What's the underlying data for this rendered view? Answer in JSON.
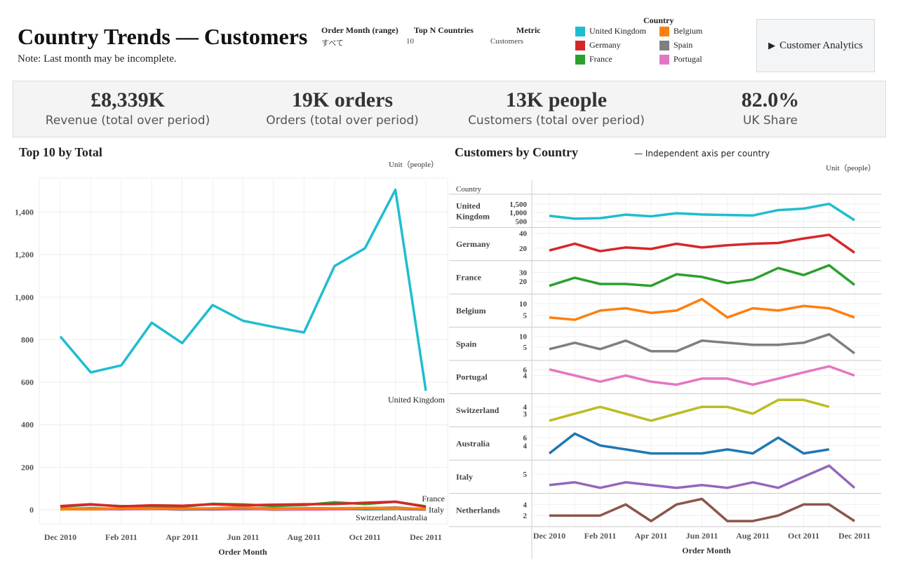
{
  "header": {
    "title": "Country Trends — Customers",
    "note": "Note: Last month may be incomplete.",
    "filters": [
      {
        "label": "Order Month (range)",
        "value": "すべて"
      },
      {
        "label": "Top N Countries",
        "value": "10"
      },
      {
        "label": "Metric",
        "value": "Customers"
      }
    ],
    "legend_title": "Country",
    "legend": [
      {
        "name": "United Kingdom",
        "color": "#1fbdd0"
      },
      {
        "name": "Belgium",
        "color": "#ff7f0e"
      },
      {
        "name": "Germany",
        "color": "#d62728"
      },
      {
        "name": "Spain",
        "color": "#7f7f7f"
      },
      {
        "name": "France",
        "color": "#2ca02c"
      },
      {
        "name": "Portugal",
        "color": "#e377c2"
      }
    ],
    "button_label": "Customer Analytics"
  },
  "kpis": [
    {
      "value": "£8,339K",
      "label": "Revenue (total over period)"
    },
    {
      "value": "19K orders",
      "label": "Orders (total over period)"
    },
    {
      "value": "13K people",
      "label": "Customers (total over period)"
    },
    {
      "value": "82.0%",
      "label": "UK Share"
    }
  ],
  "chart_data": [
    {
      "type": "line",
      "title": "Top 10 by Total",
      "unit": "Unit（people）",
      "xlabel": "Order Month",
      "ylabel": "",
      "ylim": [
        0,
        1560
      ],
      "yticks": [
        0,
        200,
        400,
        600,
        800,
        1000,
        1200,
        1400
      ],
      "ytick_labels": [
        "0",
        "200",
        "400",
        "600",
        "800",
        "1,000",
        "1,200",
        "1,400"
      ],
      "x": [
        "Dec 2010",
        "Jan 2011",
        "Feb 2011",
        "Mar 2011",
        "Apr 2011",
        "May 2011",
        "Jun 2011",
        "Jul 2011",
        "Aug 2011",
        "Sep 2011",
        "Oct 2011",
        "Nov 2011",
        "Dec 2011"
      ],
      "xtick_labels": [
        "Dec 2010",
        "Feb 2011",
        "Apr 2011",
        "Jun 2011",
        "Aug 2011",
        "Oct 2011",
        "Dec 2011"
      ],
      "series": [
        {
          "name": "United Kingdom",
          "color": "#1fbdd0",
          "values": [
            815,
            646,
            679,
            880,
            784,
            963,
            889,
            860,
            834,
            1146,
            1230,
            1505,
            560
          ]
        },
        {
          "name": "Germany",
          "color": "#d62728",
          "values": [
            17,
            26,
            16,
            21,
            19,
            26,
            21,
            24,
            26,
            27,
            33,
            38,
            14
          ]
        },
        {
          "name": "France",
          "color": "#2ca02c",
          "values": [
            15,
            24,
            17,
            17,
            15,
            28,
            25,
            18,
            22,
            35,
            27,
            38,
            16
          ]
        },
        {
          "name": "Belgium",
          "color": "#ff7f0e",
          "values": [
            4,
            3,
            7,
            8,
            6,
            7,
            12,
            4,
            8,
            7,
            9,
            8,
            4
          ]
        },
        {
          "name": "Spain",
          "color": "#7f7f7f",
          "values": [
            4,
            7,
            4,
            8,
            3,
            3,
            8,
            7,
            6,
            6,
            7,
            11,
            2
          ]
        },
        {
          "name": "Portugal",
          "color": "#e377c2",
          "values": [
            6,
            4,
            2,
            4,
            2,
            1,
            3,
            3,
            1,
            3,
            5,
            7,
            4
          ]
        },
        {
          "name": "Switzerland",
          "color": "#bcbd22",
          "values": [
            2,
            3,
            4,
            3,
            2,
            3,
            4,
            4,
            3,
            5,
            5,
            4,
            null
          ]
        },
        {
          "name": "Australia",
          "color": "#1f77b4",
          "values": [
            2,
            7,
            4,
            3,
            2,
            2,
            2,
            3,
            2,
            6,
            2,
            3,
            null
          ]
        },
        {
          "name": "Italy",
          "color": "#9467bd",
          "values": [
            3,
            3.5,
            2.5,
            3.5,
            3,
            2.5,
            3,
            2.5,
            3.5,
            2.5,
            4.5,
            6.5,
            2.5
          ]
        },
        {
          "name": "Netherlands",
          "color": "#8c564b",
          "values": [
            2,
            2,
            2,
            4,
            1,
            4,
            5,
            1,
            1,
            2,
            4,
            4,
            1
          ]
        }
      ],
      "annotations": [
        "United Kingdom",
        "France",
        "Italy",
        "Switzerland",
        "Australia"
      ]
    },
    {
      "type": "line",
      "title": "Customers by Country",
      "subtitle": "— Independent axis per country",
      "unit": "Unit（people）",
      "xlabel": "Order Month",
      "row_header": "Country",
      "x": [
        "Dec 2010",
        "Jan 2011",
        "Feb 2011",
        "Mar 2011",
        "Apr 2011",
        "May 2011",
        "Jun 2011",
        "Jul 2011",
        "Aug 2011",
        "Sep 2011",
        "Oct 2011",
        "Nov 2011",
        "Dec 2011"
      ],
      "xtick_labels": [
        "Dec 2010",
        "Feb 2011",
        "Apr 2011",
        "Jun 2011",
        "Aug 2011",
        "Oct 2011",
        "Dec 2011"
      ],
      "panels": [
        {
          "name": "United Kingdom",
          "label": "United Kingdom",
          "color": "#1fbdd0",
          "ylim": [
            300,
            1900
          ],
          "yticks": [
            500,
            1000,
            1500
          ],
          "ytick_labels": [
            "500",
            "1,000",
            "1,500"
          ],
          "values": [
            815,
            646,
            679,
            880,
            784,
            963,
            889,
            860,
            834,
            1146,
            1230,
            1505,
            560
          ]
        },
        {
          "name": "Germany",
          "label": "Germany",
          "color": "#d62728",
          "ylim": [
            7,
            44
          ],
          "yticks": [
            20,
            40
          ],
          "ytick_labels": [
            "20",
            "40"
          ],
          "values": [
            17,
            26,
            16,
            21,
            19,
            26,
            21,
            24,
            26,
            27,
            33,
            38,
            14
          ]
        },
        {
          "name": "France",
          "label": "France",
          "color": "#2ca02c",
          "ylim": [
            9,
            40
          ],
          "yticks": [
            20,
            30
          ],
          "ytick_labels": [
            "20",
            "30"
          ],
          "values": [
            15,
            24,
            17,
            17,
            15,
            28,
            25,
            18,
            22,
            35,
            27,
            38,
            16
          ]
        },
        {
          "name": "Belgium",
          "label": "Belgium",
          "color": "#ff7f0e",
          "ylim": [
            1,
            13
          ],
          "yticks": [
            5,
            10
          ],
          "ytick_labels": [
            "5",
            "10"
          ],
          "values": [
            4,
            3,
            7,
            8,
            6,
            7,
            12,
            4,
            8,
            7,
            9,
            8,
            4
          ]
        },
        {
          "name": "Spain",
          "label": "Spain",
          "color": "#7f7f7f",
          "ylim": [
            0,
            13
          ],
          "yticks": [
            5,
            10
          ],
          "ytick_labels": [
            "5",
            "10"
          ],
          "values": [
            4,
            7,
            4,
            8,
            3,
            3,
            8,
            7,
            6,
            6,
            7,
            11,
            2
          ]
        },
        {
          "name": "Portugal",
          "label": "Portugal",
          "color": "#e377c2",
          "ylim": [
            -1,
            8
          ],
          "yticks": [
            4,
            6
          ],
          "ytick_labels": [
            "4",
            "6"
          ],
          "values": [
            6,
            4,
            2,
            4,
            2,
            1,
            3,
            3,
            1,
            3,
            5,
            7,
            4
          ]
        },
        {
          "name": "Switzerland",
          "label": "Switzerland",
          "color": "#bcbd22",
          "ylim": [
            1.5,
            5.5
          ],
          "yticks": [
            3,
            4
          ],
          "ytick_labels": [
            "3",
            "4"
          ],
          "values": [
            2,
            3,
            4,
            3,
            2,
            3,
            4,
            4,
            3,
            5,
            5,
            4,
            null
          ]
        },
        {
          "name": "Australia",
          "label": "Australia",
          "color": "#1f77b4",
          "ylim": [
            1,
            8
          ],
          "yticks": [
            4,
            6
          ],
          "ytick_labels": [
            "4",
            "6"
          ],
          "values": [
            2,
            7,
            4,
            3,
            2,
            2,
            2,
            3,
            2,
            6,
            2,
            3,
            null
          ]
        },
        {
          "name": "Italy",
          "label": "Italy",
          "color": "#9467bd",
          "ylim": [
            2,
            7
          ],
          "yticks": [
            5
          ],
          "ytick_labels": [
            "5"
          ],
          "values": [
            3,
            3.5,
            2.5,
            3.5,
            3,
            2.5,
            3,
            2.5,
            3.5,
            2.5,
            4.5,
            6.5,
            2.5
          ]
        },
        {
          "name": "Netherlands",
          "label": "Netherlands",
          "color": "#8c564b",
          "ylim": [
            0.5,
            5.5
          ],
          "yticks": [
            2,
            4
          ],
          "ytick_labels": [
            "2",
            "4"
          ],
          "values": [
            2,
            2,
            2,
            4,
            1,
            4,
            5,
            1,
            1,
            2,
            4,
            4,
            1
          ]
        }
      ]
    }
  ]
}
